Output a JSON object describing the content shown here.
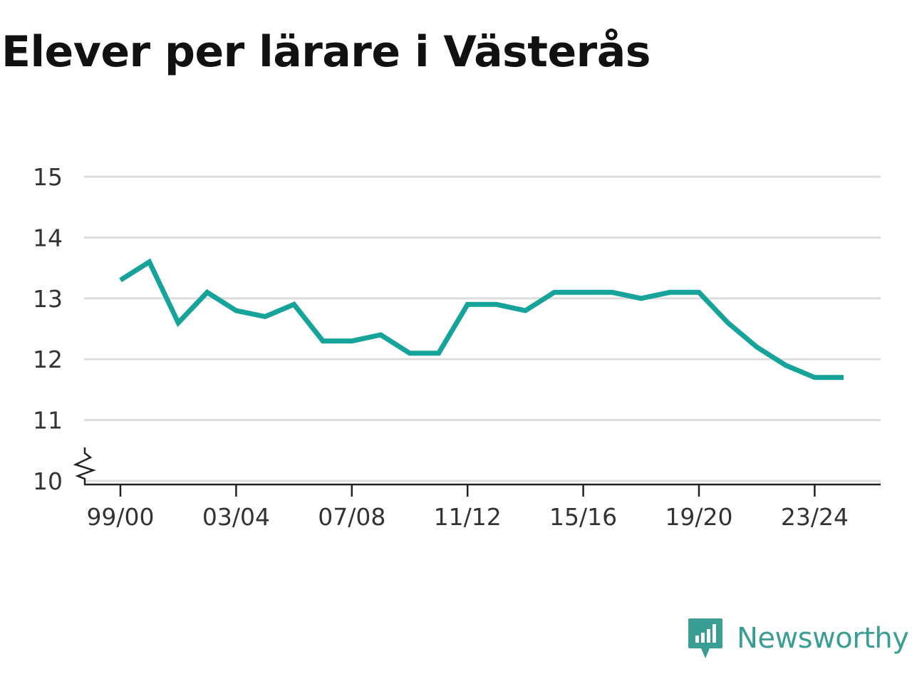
{
  "chart_data": {
    "type": "line",
    "title": "Elever per lärare i Västerås",
    "xlabel": "",
    "ylabel": "",
    "x_ticks": [
      "99/00",
      "03/04",
      "07/08",
      "11/12",
      "15/16",
      "19/20",
      "23/24"
    ],
    "y_ticks": [
      "10",
      "11",
      "12",
      "13",
      "14",
      "15"
    ],
    "ylim": [
      10,
      15
    ],
    "y_axis_break": true,
    "grid": "horizontal",
    "line_color": "#16a39a",
    "series": [
      {
        "x": [
          "99/00",
          "00/01",
          "01/02",
          "02/03",
          "03/04",
          "04/05",
          "05/06",
          "06/07",
          "07/08",
          "08/09",
          "09/10",
          "10/11",
          "11/12",
          "12/13",
          "13/14",
          "14/15",
          "15/16",
          "16/17",
          "17/18",
          "18/19",
          "19/20",
          "20/21",
          "21/22",
          "22/23",
          "23/24",
          "24/25"
        ],
        "values": [
          13.3,
          13.6,
          12.6,
          13.1,
          12.8,
          12.7,
          12.9,
          12.3,
          12.3,
          12.4,
          12.1,
          12.1,
          12.9,
          12.9,
          12.8,
          13.1,
          13.1,
          13.1,
          13.0,
          13.1,
          13.1,
          12.6,
          12.2,
          11.9,
          11.7,
          11.7
        ]
      }
    ]
  },
  "brand": {
    "name": "Newsworthy",
    "logo_icon": "newsworthy-logo-icon",
    "color": "#3a9e95"
  }
}
